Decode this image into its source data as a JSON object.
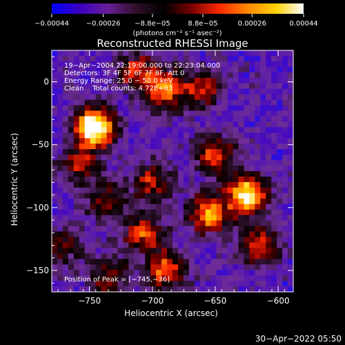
{
  "chart_data": {
    "type": "heatmap",
    "title": "Reconstructed RHESSI Image",
    "xlabel": "Heliocentric X (arcsec)",
    "ylabel": "Heliocentric Y (arcsec)",
    "xlim": [
      -780,
      -588
    ],
    "ylim": [
      -167,
      25
    ],
    "x_ticks": [
      -750,
      -700,
      -650,
      -600
    ],
    "x_tick_labels": [
      "−750",
      "−700",
      "−650",
      "−600"
    ],
    "y_ticks": [
      0,
      -50,
      -100,
      -150
    ],
    "y_tick_labels": [
      "0",
      "−50",
      "−100",
      "−150"
    ],
    "colorbar": {
      "range": [
        -0.00044,
        0.00044
      ],
      "tick_values": [
        -0.00044,
        -0.00026,
        -8.8e-05,
        8.8e-05,
        0.00026,
        0.00044
      ],
      "tick_labels": [
        "−0.00044",
        "−0.00026",
        "−8.8e−05",
        "8.8e−05",
        "0.00026",
        "0.00044"
      ],
      "units_label": "(photons cm⁻² s⁻¹ asec⁻²)",
      "colors": [
        "#0000ff",
        "#3a00c0",
        "#6a1e9a",
        "#30102a",
        "#000000",
        "#7a0000",
        "#ff2a00",
        "#ff8800",
        "#ffd000",
        "#ffffff"
      ]
    },
    "annotations": [
      "19−Apr−2004 22:19:00.000 to 22:23:04.000",
      "Detectors: 3F 4F 5F 6F 7F 8F, Att 0",
      "Energy Range: 25.0 − 50.0 keV",
      "Clean    Total counts: 4.72E+03"
    ],
    "peak_label": "Position of Peak = [−745,−36]",
    "peak": {
      "x": -745,
      "y": -36,
      "value": 0.00044
    },
    "blobs": [
      {
        "x": -745,
        "y": -36,
        "amp": 1.0
      },
      {
        "x": -690,
        "y": -6,
        "amp": 0.65
      },
      {
        "x": -712,
        "y": 8,
        "amp": 0.5
      },
      {
        "x": -660,
        "y": -5,
        "amp": 0.45
      },
      {
        "x": -650,
        "y": -58,
        "amp": 0.55
      },
      {
        "x": -625,
        "y": -90,
        "amp": 0.85
      },
      {
        "x": -655,
        "y": -105,
        "amp": 0.7
      },
      {
        "x": -700,
        "y": -80,
        "amp": 0.5
      },
      {
        "x": -708,
        "y": -120,
        "amp": 0.55
      },
      {
        "x": -690,
        "y": -150,
        "amp": 0.6
      },
      {
        "x": -758,
        "y": -65,
        "amp": 0.45
      },
      {
        "x": -770,
        "y": -130,
        "amp": 0.35
      },
      {
        "x": -615,
        "y": -130,
        "amp": 0.5
      },
      {
        "x": -735,
        "y": -155,
        "amp": 0.4
      },
      {
        "x": -738,
        "y": -95,
        "amp": 0.35
      }
    ]
  },
  "timestamp": "30−Apr−2022 05:50"
}
